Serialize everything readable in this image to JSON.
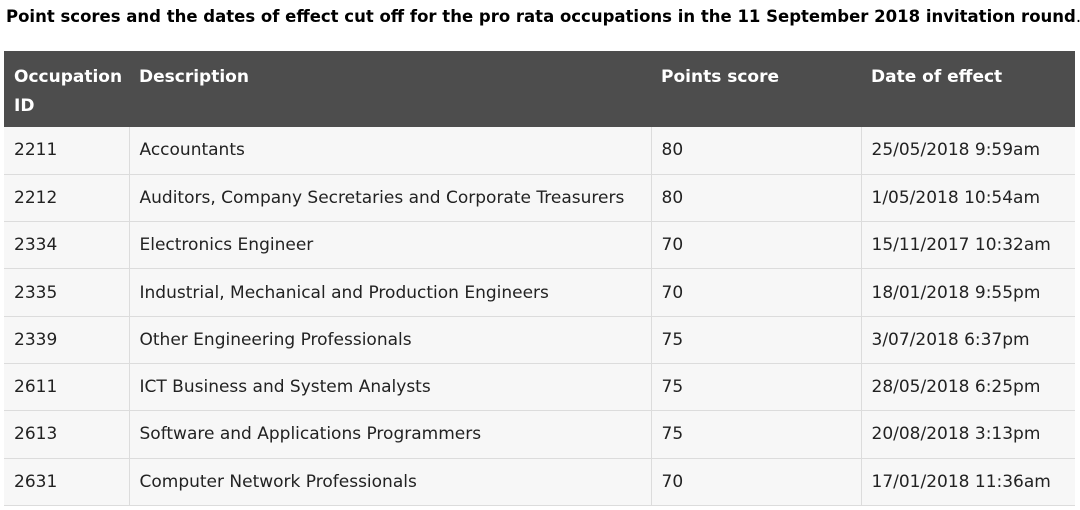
{
  "caption": {
    "text": "Point scores and the dates of effect cut off for the pro rata occupations in the 11 September 2018 invitation round",
    "period": "."
  },
  "table": {
    "headers": {
      "occupation_id": "Occupation ID",
      "description": "Description",
      "points_score": "Points score",
      "date_of_effect": "Date of effect"
    },
    "rows": [
      {
        "id": "2211",
        "description": "Accountants",
        "points": "80",
        "date": "25/05/2018 9:59am"
      },
      {
        "id": "2212",
        "description": "Auditors, Company Secretaries and Corporate Treasurers",
        "points": "80",
        "date": "1/05/2018 10:54am"
      },
      {
        "id": "2334",
        "description": "Electronics Engineer",
        "points": "70",
        "date": "15/11/2017 10:32am"
      },
      {
        "id": "2335",
        "description": "Industrial, Mechanical and Production Engineers",
        "points": "70",
        "date": "18/01/2018 9:55pm"
      },
      {
        "id": "2339",
        "description": "Other Engineering Professionals",
        "points": "75",
        "date": "3/07/2018 6:37pm"
      },
      {
        "id": "2611",
        "description": "ICT Business and System Analysts",
        "points": "75",
        "date": "28/05/2018 6:25pm"
      },
      {
        "id": "2613",
        "description": "Software and Applications Programmers",
        "points": "75",
        "date": "20/08/2018 3:13pm"
      },
      {
        "id": "2631",
        "description": "Computer Network Professionals",
        "points": "70",
        "date": "17/01/2018 11:36am"
      }
    ]
  },
  "colors": {
    "header_background": "#4d4d4d",
    "header_text": "#ffffff",
    "row_background": "#f7f7f7",
    "row_border": "#dcdcdc"
  }
}
